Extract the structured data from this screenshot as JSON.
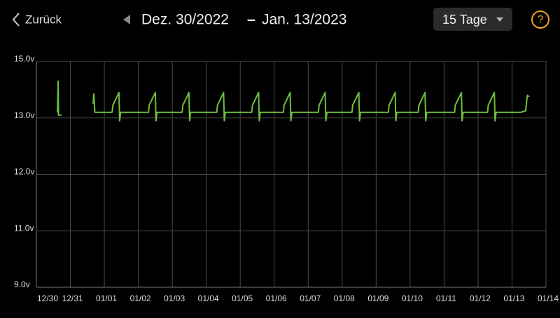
{
  "header": {
    "back": "Zurück",
    "start_date": "Dez. 30/2022",
    "separator": "–",
    "end_date": "Jan. 13/2023",
    "range": "15 Tage",
    "help": "?"
  },
  "chart_data": {
    "type": "line",
    "color": "#6cc13c",
    "x": [
      0.62,
      0.64,
      0.65,
      0.74,
      0.75,
      1.67,
      1.69,
      1.72,
      2.23,
      2.25,
      2.43,
      2.45,
      2.48,
      3.3,
      3.32,
      3.5,
      3.52,
      3.55,
      4.29,
      4.31,
      4.49,
      4.51,
      4.54,
      5.31,
      5.33,
      5.51,
      5.53,
      5.56,
      6.34,
      6.36,
      6.54,
      6.56,
      6.59,
      7.27,
      7.29,
      7.47,
      7.49,
      7.52,
      8.3,
      8.32,
      8.5,
      8.52,
      8.55,
      9.29,
      9.31,
      9.49,
      9.51,
      9.54,
      10.36,
      10.38,
      10.56,
      10.58,
      10.61,
      11.24,
      11.26,
      11.44,
      11.46,
      11.49,
      12.31,
      12.33,
      12.51,
      12.53,
      12.56,
      13.28,
      13.3,
      13.48,
      13.5,
      13.53,
      14.25,
      14.4,
      14.45,
      14.51
    ],
    "values": [
      13.2,
      14.3,
      13.1,
      13.1,
      null,
      13.5,
      13.85,
      13.2,
      13.2,
      13.45,
      13.9,
      12.95,
      13.2,
      13.2,
      13.45,
      13.9,
      12.95,
      13.2,
      13.2,
      13.45,
      13.9,
      12.95,
      13.2,
      13.2,
      13.45,
      13.9,
      12.95,
      13.2,
      13.2,
      13.45,
      13.9,
      12.95,
      13.2,
      13.2,
      13.45,
      13.9,
      12.95,
      13.2,
      13.2,
      13.45,
      13.9,
      12.95,
      13.2,
      13.2,
      13.45,
      13.9,
      12.95,
      13.2,
      13.2,
      13.45,
      13.9,
      12.95,
      13.2,
      13.2,
      13.45,
      13.9,
      12.95,
      13.2,
      13.2,
      13.45,
      13.9,
      12.95,
      13.2,
      13.2,
      13.45,
      13.9,
      12.95,
      13.2,
      13.2,
      13.25,
      13.8,
      13.75
    ],
    "xlim": [
      0,
      15
    ],
    "xticks": [
      {
        "value": 0,
        "label": "12/30"
      },
      {
        "value": 1,
        "label": "12/31"
      },
      {
        "value": 2,
        "label": "01/01"
      },
      {
        "value": 3,
        "label": "01/02"
      },
      {
        "value": 4,
        "label": "01/03"
      },
      {
        "value": 5,
        "label": "01/04"
      },
      {
        "value": 6,
        "label": "01/05"
      },
      {
        "value": 7,
        "label": "01/06"
      },
      {
        "value": 8,
        "label": "01/07"
      },
      {
        "value": 9,
        "label": "01/08"
      },
      {
        "value": 10,
        "label": "01/09"
      },
      {
        "value": 11,
        "label": "01/10"
      },
      {
        "value": 12,
        "label": "01/11"
      },
      {
        "value": 13,
        "label": "01/12"
      },
      {
        "value": 14,
        "label": "01/13"
      },
      {
        "value": 15,
        "label": "01/14"
      }
    ],
    "ylim": [
      9,
      15
    ],
    "yticks": [
      {
        "value": 9,
        "label": "9.0v"
      },
      {
        "value": 11,
        "label": "11.0v"
      },
      {
        "value": 12,
        "label": "12.0v"
      },
      {
        "value": 13,
        "label": "13.0v"
      },
      {
        "value": 15,
        "label": "15.0v"
      }
    ],
    "grid": true
  }
}
